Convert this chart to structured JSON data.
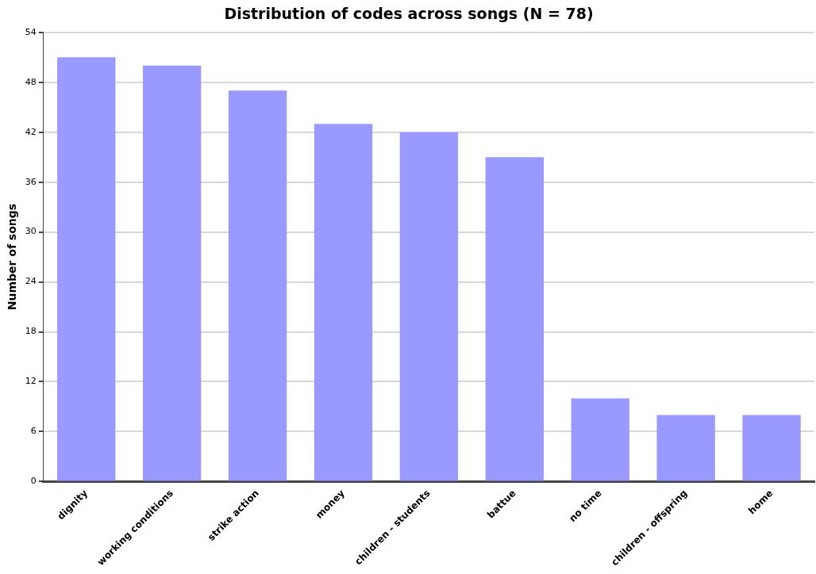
{
  "chart_data": {
    "type": "bar",
    "title": "Distribution of codes across songs (N = 78)",
    "ylabel": "Number of songs",
    "categories": [
      "dignity",
      "working conditions",
      "strike action",
      "money",
      "children - students",
      "battue",
      "no time",
      "children - offspring",
      "home"
    ],
    "values": [
      51,
      50,
      47,
      43,
      42,
      39,
      10,
      8,
      8
    ],
    "color": "#9999ff",
    "ylim": [
      0,
      54
    ],
    "yticks": [
      0,
      6,
      12,
      18,
      24,
      30,
      36,
      42,
      48,
      54
    ],
    "grid": "y",
    "legend": false
  }
}
